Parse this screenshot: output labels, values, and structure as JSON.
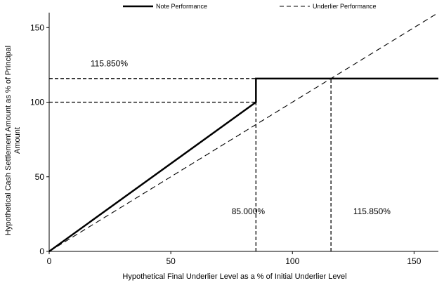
{
  "chart_data": {
    "type": "line",
    "xlabel": "Hypothetical Final Underlier Level as a % of Initial Underlier Level",
    "ylabel_lines": [
      "Hypothetical Cash Settlement Amount as % of Principal",
      "Amount"
    ],
    "xlim": [
      0,
      160
    ],
    "ylim": [
      0,
      160
    ],
    "xticks": [
      0,
      50,
      100,
      150
    ],
    "yticks": [
      0,
      50,
      100,
      150
    ],
    "grid": false,
    "legend_position": "top",
    "series": [
      {
        "name": "Note Performance",
        "style": "solid",
        "color": "#000000",
        "points": [
          [
            0,
            0
          ],
          [
            85,
            100
          ],
          [
            85,
            115.85
          ],
          [
            160,
            115.85
          ]
        ]
      },
      {
        "name": "Underlier Performance",
        "style": "dashed",
        "color": "#000000",
        "points": [
          [
            0,
            0
          ],
          [
            160,
            160
          ]
        ]
      }
    ],
    "reference_lines": [
      {
        "points": [
          [
            0,
            100
          ],
          [
            85,
            100
          ]
        ]
      },
      {
        "points": [
          [
            85,
            0
          ],
          [
            85,
            100
          ]
        ]
      },
      {
        "points": [
          [
            0,
            115.85
          ],
          [
            85,
            115.85
          ]
        ]
      },
      {
        "points": [
          [
            115.85,
            0
          ],
          [
            115.85,
            115.85
          ]
        ]
      }
    ],
    "annotations": [
      {
        "text": "115.850%",
        "x": 17,
        "y": 124
      },
      {
        "text": "85.000%",
        "x": 75,
        "y": 25
      },
      {
        "text": "115.850%",
        "x": 125,
        "y": 25
      }
    ]
  }
}
